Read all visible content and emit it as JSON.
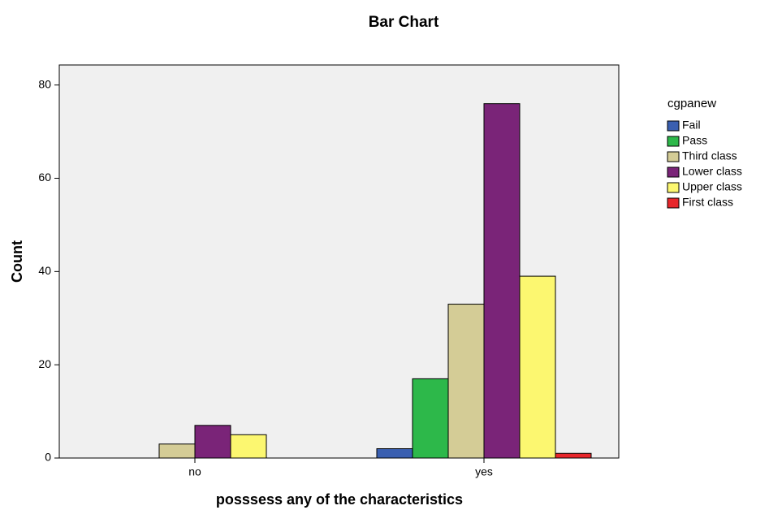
{
  "chart_data": {
    "type": "bar",
    "title": "Bar Chart",
    "x_label": "posssess any of the characteristics",
    "y_label": "Count",
    "legend_title": "cgpanew",
    "categories": [
      "no",
      "yes"
    ],
    "series": [
      {
        "name": "Fail",
        "color": "#3a5fb0",
        "values": [
          0,
          2
        ]
      },
      {
        "name": "Pass",
        "color": "#2db84a",
        "values": [
          0,
          17
        ]
      },
      {
        "name": "Third class",
        "color": "#d4cc96",
        "values": [
          3,
          33
        ]
      },
      {
        "name": "Lower class",
        "color": "#7a2478",
        "values": [
          7,
          76
        ]
      },
      {
        "name": "Upper class",
        "color": "#fcf770",
        "values": [
          5,
          39
        ]
      },
      {
        "name": "First class",
        "color": "#e8262b",
        "values": [
          0,
          1
        ]
      }
    ],
    "ylim": [
      0,
      84.3
    ],
    "yticks": [
      0,
      20,
      40,
      60,
      80
    ],
    "legend": "right"
  }
}
